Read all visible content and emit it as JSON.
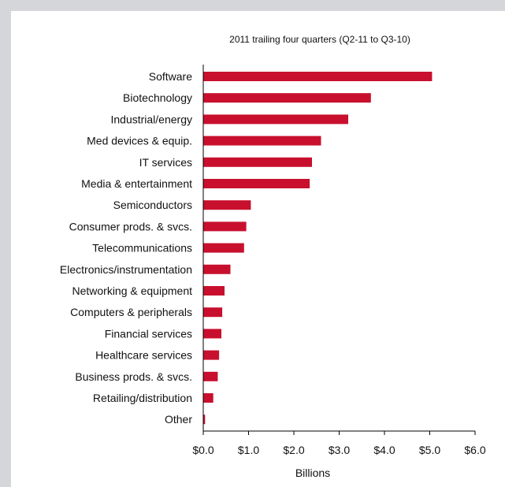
{
  "chart_data": {
    "type": "bar",
    "orientation": "horizontal",
    "title": "2011 trailing four quarters (Q2-11 to Q3-10)",
    "xlabel": "Billions",
    "ylabel": "",
    "categories": [
      "Software",
      "Biotechnology",
      "Industrial/energy",
      "Med devices & equip.",
      "IT services",
      "Media & entertainment",
      "Semiconductors",
      "Consumer prods. & svcs.",
      "Telecommunications",
      "Electronics/instrumentation",
      "Networking & equipment",
      "Computers & peripherals",
      "Financial services",
      "Healthcare services",
      "Business prods. & svcs.",
      "Retailing/distribution",
      "Other"
    ],
    "values": [
      5.05,
      3.7,
      3.2,
      2.6,
      2.4,
      2.35,
      1.05,
      0.95,
      0.9,
      0.6,
      0.47,
      0.42,
      0.4,
      0.35,
      0.32,
      0.22,
      0.04
    ],
    "xlim": [
      0,
      6
    ],
    "x_ticks": [
      0,
      1,
      2,
      3,
      4,
      5,
      6
    ],
    "x_tick_labels": [
      "$0.0",
      "$1.0",
      "$2.0",
      "$3.0",
      "$4.0",
      "$5.0",
      "$6.0"
    ],
    "grid": false,
    "legend": "none",
    "colors": {
      "bar": "#c8102e",
      "background": "#d4d6d9",
      "panel": "#ffffff",
      "axis": "#000000"
    }
  }
}
